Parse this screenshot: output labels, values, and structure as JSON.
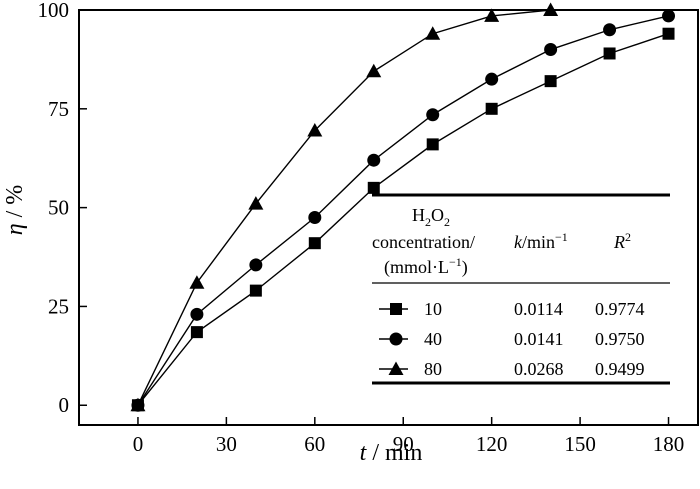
{
  "chart_data": {
    "type": "line",
    "xlabel_symbol": "t",
    "xlabel_unit": " / min",
    "ylabel_symbol": "η",
    "ylabel_unit": " / %",
    "xlim": [
      -20,
      190
    ],
    "ylim": [
      -5,
      100
    ],
    "xticks": [
      0,
      30,
      60,
      90,
      120,
      150,
      180
    ],
    "yticks": [
      0,
      25,
      50,
      75,
      100
    ],
    "series": [
      {
        "name": "10",
        "marker": "square",
        "x": [
          0,
          20,
          40,
          60,
          80,
          100,
          120,
          140,
          160,
          180
        ],
        "y": [
          0,
          18.5,
          29,
          41,
          55,
          66,
          75,
          82,
          89,
          94
        ]
      },
      {
        "name": "40",
        "marker": "circle",
        "x": [
          0,
          20,
          40,
          60,
          80,
          100,
          120,
          140,
          160,
          180
        ],
        "y": [
          0,
          23,
          35.5,
          47.5,
          62,
          73.5,
          82.5,
          90,
          95,
          98.5
        ]
      },
      {
        "name": "80",
        "marker": "triangle",
        "x": [
          0,
          20,
          40,
          60,
          80,
          100,
          120,
          140
        ],
        "y": [
          0,
          31,
          51,
          69.5,
          84.5,
          94,
          98.5,
          100
        ]
      }
    ],
    "legend_table": {
      "header": {
        "col1_line1_base": "H",
        "col1_line1_sub1": "2",
        "col1_line1_mid": "O",
        "col1_line1_sub2": "2",
        "col1_line2": "concentration/",
        "col1_line3_pre": "(mmol·L",
        "col1_line3_sup": "−1",
        "col1_line3_post": ")",
        "col2_symbol": "k",
        "col2_unit": "/min",
        "col2_sup": "−1",
        "col3_symbol": "R",
        "col3_sup": "2"
      },
      "rows": [
        {
          "marker": "square",
          "conc": "10",
          "k": "0.0114",
          "r2": "0.9774"
        },
        {
          "marker": "circle",
          "conc": "40",
          "k": "0.0141",
          "r2": "0.9750"
        },
        {
          "marker": "triangle",
          "conc": "80",
          "k": "0.0268",
          "r2": "0.9499"
        }
      ]
    }
  }
}
